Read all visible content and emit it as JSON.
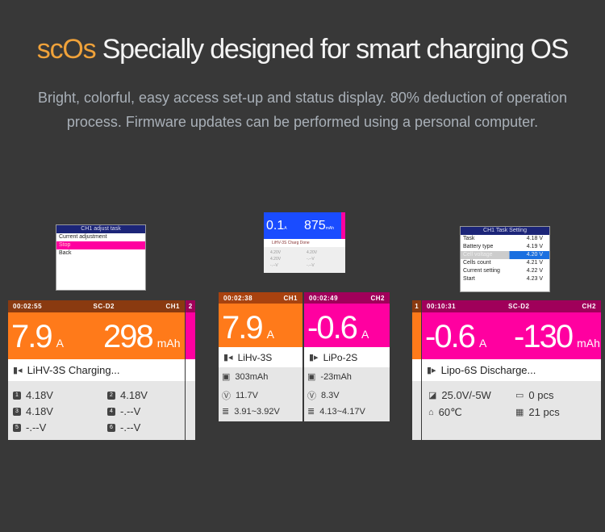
{
  "header": {
    "brand": "scOs",
    "title": "Specially designed for smart charging OS",
    "subtitle": "Bright, colorful, easy access set-up and status display. 80% deduction of operation process. Firmware updates can be performed using a personal computer."
  },
  "colors": {
    "bg": "#383838",
    "orange": "#ff7a1a",
    "magenta": "#ff00a0",
    "brown": "#8a3a10",
    "blue": "#1a4cff"
  },
  "menu_adjust": {
    "title": "CH1 adjust task",
    "items": [
      "Current adjustment",
      "Stop",
      "Back"
    ]
  },
  "mini_screen": {
    "current": "0.1",
    "current_unit": "A",
    "capacity": "875",
    "capacity_unit": "mAh",
    "status": "LiHV-3S Charg Done",
    "cells": [
      "4.20V",
      "4.20V",
      "4.20V",
      "-.--V",
      "-.--V",
      "-.--V"
    ]
  },
  "menu_task": {
    "title": "CH1 Task Setting",
    "items": [
      {
        "label": "Task",
        "value": "4.18 V"
      },
      {
        "label": "Battery type",
        "value": "4.19 V"
      },
      {
        "label": "Cell voltage",
        "value": "4.20 V"
      },
      {
        "label": "Cells count",
        "value": "4.21 V"
      },
      {
        "label": "Current setting",
        "value": "4.22 V"
      },
      {
        "label": "Start",
        "value": "4.23 V"
      }
    ]
  },
  "screen1": {
    "time": "00:02:55",
    "model": "SC-D2",
    "channel": "CH1",
    "side": "2",
    "current": "7.9",
    "current_unit": "A",
    "capacity": "298",
    "capacity_unit": "mAh",
    "status": "LiHV-3S Charging...",
    "cells": [
      {
        "n": "1",
        "v": "4.18V"
      },
      {
        "n": "2",
        "v": "4.18V"
      },
      {
        "n": "3",
        "v": "4.18V"
      },
      {
        "n": "4",
        "v": "-.--V"
      },
      {
        "n": "5",
        "v": "-.--V"
      },
      {
        "n": "6",
        "v": "-.--V"
      }
    ]
  },
  "screen2": {
    "ch1": {
      "time": "00:02:38",
      "channel": "CH1",
      "current": "7.9",
      "unit": "A",
      "battery": "LiHv-3S",
      "capacity": "303mAh",
      "voltage": "11.7V",
      "range": "3.91~3.92V"
    },
    "ch2": {
      "time": "00:02:49",
      "channel": "CH2",
      "current": "-0.6",
      "unit": "A",
      "battery": "LiPo-2S",
      "capacity": "-23mAh",
      "voltage": "8.3V",
      "range": "4.13~4.17V"
    }
  },
  "screen3": {
    "side": "1",
    "time": "00:10:31",
    "model": "SC-D2",
    "channel": "CH2",
    "current": "-0.6",
    "current_unit": "A",
    "capacity": "-130",
    "capacity_unit": "mAh",
    "status": "Lipo-6S Discharge...",
    "power": "25.0V/-5W",
    "temp": "60℃",
    "pcs1": "0 pcs",
    "pcs2": "21 pcs"
  }
}
